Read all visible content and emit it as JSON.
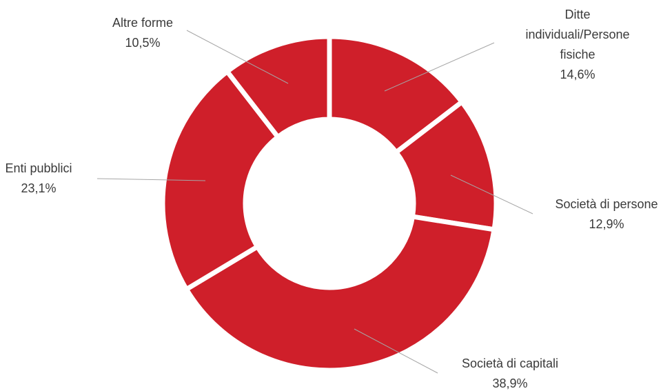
{
  "chart_data": {
    "type": "pie",
    "donut": true,
    "title": "",
    "colors": {
      "slice": "#cf1f2a",
      "separator": "#ffffff",
      "text": "#3a3a3a",
      "leader": "#a6a6a6"
    },
    "slices": [
      {
        "label_lines": [
          "Ditte",
          "individuali/Persone",
          "fisiche"
        ],
        "value": 14.6,
        "value_label": "14,6%"
      },
      {
        "label_lines": [
          "Società di persone"
        ],
        "value": 12.9,
        "value_label": "12,9%"
      },
      {
        "label_lines": [
          "Società di capitali"
        ],
        "value": 38.9,
        "value_label": "38,9%"
      },
      {
        "label_lines": [
          "Enti pubblici"
        ],
        "value": 23.1,
        "value_label": "23,1%"
      },
      {
        "label_lines": [
          "Altre forme"
        ],
        "value": 10.5,
        "value_label": "10,5%"
      }
    ]
  }
}
